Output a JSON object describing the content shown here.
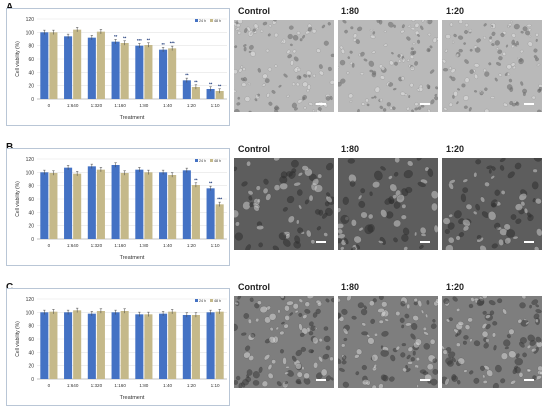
{
  "panels": [
    {
      "letter": "A",
      "legend": [
        "24 h",
        "48 h"
      ],
      "ylabel": "Cell viability (%)",
      "xlabel": "Treatment",
      "micrographs": [
        "Control",
        "1:80",
        "1:20"
      ]
    },
    {
      "letter": "B",
      "legend": [
        "24 h",
        "48 h"
      ],
      "ylabel": "Cell viability (%)",
      "xlabel": "Treatment",
      "micrographs": [
        "Control",
        "1:80",
        "1:20"
      ]
    },
    {
      "letter": "C",
      "legend": [
        "24 h",
        "48 h"
      ],
      "ylabel": "Cell viability (%)",
      "xlabel": "Treatment",
      "micrographs": [
        "Control",
        "1:80",
        "1:20"
      ]
    }
  ],
  "colors": {
    "series24": "#4472c4",
    "series48": "#c5b98a",
    "star": "#1f3b7a"
  },
  "chart_data": [
    {
      "type": "bar",
      "categories": [
        "0",
        "1:640",
        "1:320",
        "1:160",
        "1:80",
        "1:40",
        "1:20",
        "1:10"
      ],
      "series": [
        {
          "name": "24 h",
          "values": [
            100,
            94,
            92,
            86,
            80,
            74,
            28,
            15
          ]
        },
        {
          "name": "48 h",
          "values": [
            100,
            104,
            101,
            84,
            81,
            76,
            18,
            12
          ]
        }
      ],
      "stars": [
        [
          "",
          ""
        ],
        [
          "",
          ""
        ],
        [
          "",
          ""
        ],
        [
          "**",
          "**"
        ],
        [
          "***",
          "**"
        ],
        [
          "**",
          "***"
        ],
        [
          "**",
          "**"
        ],
        [
          "**",
          "**"
        ]
      ],
      "yticks": [
        0,
        20,
        40,
        60,
        80,
        100,
        120
      ],
      "ylim": [
        0,
        120
      ],
      "xlabel": "Treatment",
      "ylabel": "Cell viability (%)"
    },
    {
      "type": "bar",
      "categories": [
        "0",
        "1:640",
        "1:320",
        "1:160",
        "1:80",
        "1:40",
        "1:20",
        "1:10"
      ],
      "series": [
        {
          "name": "24 h",
          "values": [
            100,
            107,
            109,
            111,
            104,
            100,
            103,
            76
          ]
        },
        {
          "name": "48 h",
          "values": [
            99,
            98,
            104,
            99,
            100,
            96,
            81,
            52
          ]
        }
      ],
      "stars": [
        [
          "",
          ""
        ],
        [
          "",
          ""
        ],
        [
          "",
          ""
        ],
        [
          "",
          ""
        ],
        [
          "",
          ""
        ],
        [
          "",
          ""
        ],
        [
          "",
          "**"
        ],
        [
          "**",
          "***"
        ]
      ],
      "yticks": [
        0,
        20,
        40,
        60,
        80,
        100,
        120
      ],
      "ylim": [
        0,
        120
      ],
      "xlabel": "Treatment",
      "ylabel": "Cell viability (%)"
    },
    {
      "type": "bar",
      "categories": [
        "0",
        "1:640",
        "1:320",
        "1:160",
        "1:80",
        "1:40",
        "1:20",
        "1:10"
      ],
      "series": [
        {
          "name": "24 h",
          "values": [
            100,
            100,
            98,
            100,
            97,
            98,
            96,
            100
          ]
        },
        {
          "name": "48 h",
          "values": [
            101,
            103,
            102,
            102,
            97,
            101,
            96,
            101
          ]
        }
      ],
      "stars": [
        [
          "",
          ""
        ],
        [
          "",
          ""
        ],
        [
          "",
          ""
        ],
        [
          "",
          ""
        ],
        [
          "",
          ""
        ],
        [
          "",
          ""
        ],
        [
          "",
          ""
        ],
        [
          "",
          ""
        ]
      ],
      "yticks": [
        0,
        20,
        40,
        60,
        80,
        100,
        120
      ],
      "ylim": [
        0,
        120
      ],
      "xlabel": "Treatment",
      "ylabel": "Cell viability (%)"
    }
  ]
}
